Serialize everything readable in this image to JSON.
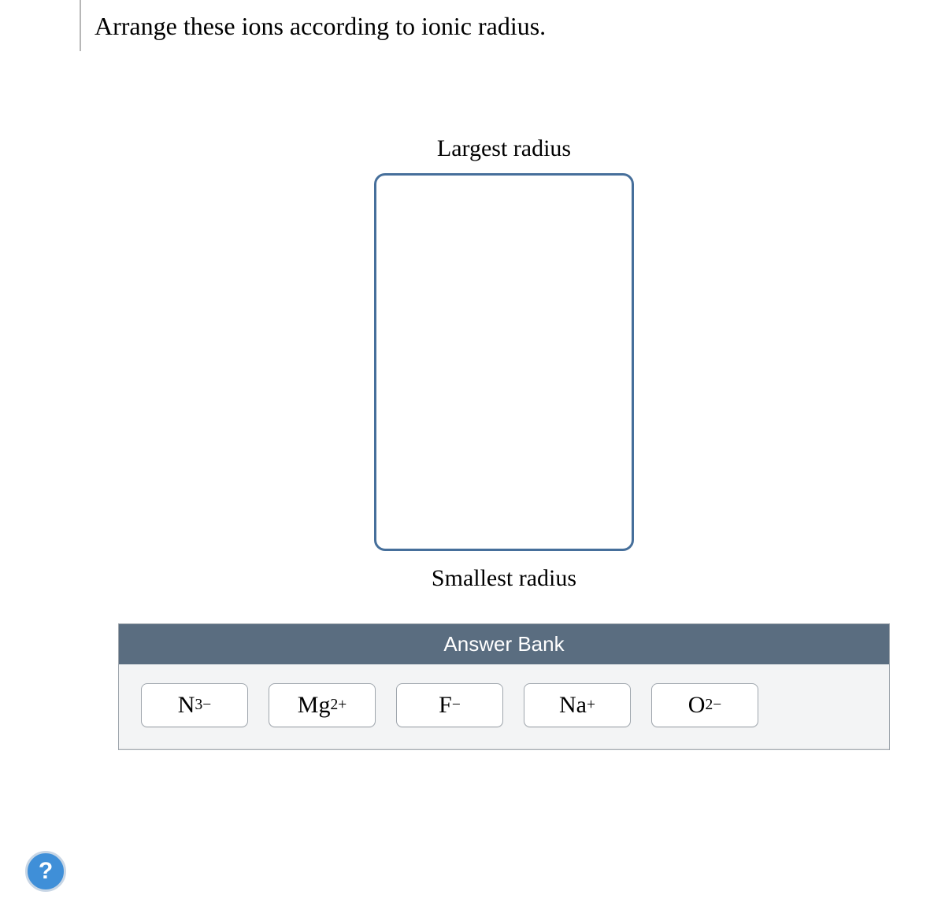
{
  "question": {
    "prompt": "Arrange these ions according to ionic radius.",
    "top_label": "Largest radius",
    "bottom_label": "Smallest radius"
  },
  "answer_bank": {
    "header": "Answer Bank",
    "tiles": [
      {
        "base": "N",
        "sup": "3−"
      },
      {
        "base": "Mg",
        "sup": "2+"
      },
      {
        "base": "F",
        "sup": "−"
      },
      {
        "base": "Na",
        "sup": "+"
      },
      {
        "base": "O",
        "sup": "2−"
      }
    ]
  },
  "help": {
    "label": "?"
  },
  "colors": {
    "dropzone_border": "#466f9b",
    "bank_header_bg": "#5a6d80",
    "bank_bg": "#f3f4f5",
    "tile_border": "#9fa6ad",
    "help_bg": "#3f8fd8",
    "help_ring": "#c8d6e5"
  }
}
